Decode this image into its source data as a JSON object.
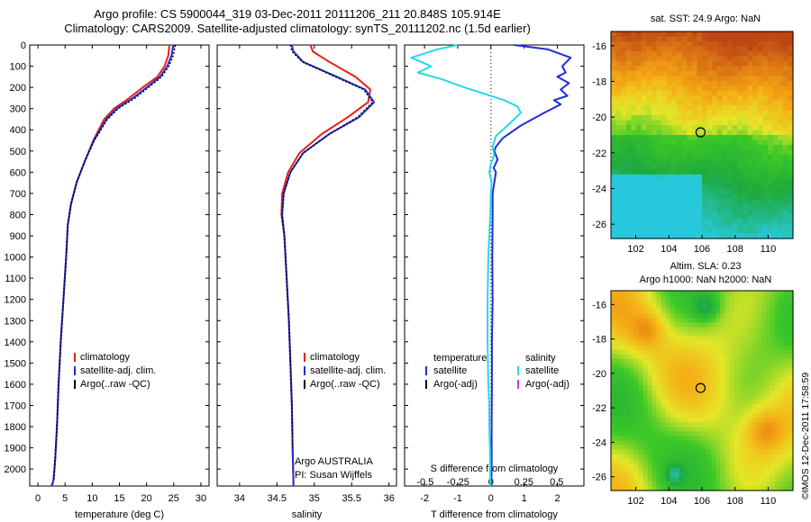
{
  "header": {
    "title_line1": "Argo profile: CS 5900044_319 03-Dec-2011 20111206_211 20.848S 105.914E",
    "title_line2": "Climatology: CARS2009. Satellite-adjusted climatology: synTS_20111202.nc (1.5d earlier)"
  },
  "credit": "©IMOS 12-Dec-2011 17:58:59",
  "sst_map": {
    "title": "sat. SST: 24.9 Argo: NaN"
  },
  "sla_map": {
    "title_line1": "Altim. SLA: 0.23",
    "title_line2": "Argo h1000: NaN h2000: NaN"
  },
  "colors": {
    "climatology": "#e8201a",
    "satellite": "#1f2fd6",
    "argo": "#000000",
    "satellite_salinity": "#26d8e8",
    "argo_adj_salinity": "#d03ad0"
  },
  "chart_data": [
    {
      "type": "line",
      "id": "temperature",
      "xlabel": "temperature (deg C)",
      "xlim": [
        -1.5,
        31.5
      ],
      "xticks": [
        0,
        5,
        10,
        15,
        20,
        25,
        30
      ],
      "ylim": [
        0,
        2080
      ],
      "yticks": [
        0,
        100,
        200,
        300,
        400,
        500,
        600,
        700,
        800,
        900,
        1000,
        1100,
        1200,
        1300,
        1400,
        1500,
        1600,
        1700,
        1800,
        1900,
        2000
      ],
      "y_reversed": true,
      "legend": [
        "climatology",
        "satellite-adj. clim.",
        "Argo(..raw -QC)"
      ],
      "series": [
        {
          "name": "climatology",
          "color": "#e8201a",
          "x": [
            24.2,
            24.0,
            23.3,
            22.0,
            19.3,
            16.8,
            14.0,
            12.2,
            10.2,
            8.6,
            7.1,
            6.1,
            5.5,
            5.2,
            4.7,
            4.2,
            3.8,
            3.5,
            3.2,
            2.9,
            2.5
          ],
          "y": [
            0,
            50,
            100,
            150,
            200,
            250,
            300,
            350,
            450,
            550,
            650,
            750,
            850,
            1000,
            1200,
            1400,
            1600,
            1800,
            1950,
            2050,
            2080
          ]
        },
        {
          "name": "satellite-adj. clim.",
          "color": "#1f2fd6",
          "x": [
            24.9,
            24.6,
            23.8,
            22.5,
            20.0,
            17.5,
            14.5,
            12.6,
            10.3,
            8.6,
            7.1,
            6.1,
            5.5,
            5.2,
            4.7,
            4.2,
            3.8,
            3.5,
            3.2,
            2.9,
            2.6
          ],
          "y": [
            0,
            50,
            100,
            150,
            200,
            250,
            300,
            350,
            450,
            550,
            650,
            750,
            850,
            1000,
            1200,
            1400,
            1600,
            1800,
            1950,
            2050,
            2080
          ]
        },
        {
          "name": "Argo(..raw -QC)",
          "color": "#000000",
          "dash": true,
          "x": [
            25.3,
            24.9,
            24.1,
            22.8,
            20.4,
            17.9,
            14.8,
            12.8,
            10.4,
            8.6,
            7.1,
            6.1,
            5.5,
            5.2,
            4.7,
            4.2,
            3.8,
            3.5,
            3.2,
            2.9
          ],
          "y": [
            0,
            50,
            100,
            150,
            200,
            250,
            300,
            350,
            450,
            550,
            650,
            750,
            850,
            1000,
            1200,
            1400,
            1600,
            1800,
            1950,
            2050
          ]
        }
      ]
    },
    {
      "type": "line",
      "id": "salinity",
      "xlabel": "salinity",
      "xlim": [
        33.7,
        36.1
      ],
      "xticks": [
        34,
        34.5,
        35,
        35.5,
        36
      ],
      "ylim": [
        0,
        2080
      ],
      "y_reversed": true,
      "legend": [
        "climatology",
        "satellite-adj. clim.",
        "Argo(..raw -QC)"
      ],
      "annotations": [
        "Argo AUSTRALIA",
        "PI: Susan Wijffels"
      ],
      "series": [
        {
          "name": "climatology",
          "color": "#e8201a",
          "x": [
            34.95,
            34.98,
            35.2,
            35.55,
            35.75,
            35.72,
            35.45,
            35.1,
            34.8,
            34.65,
            34.57,
            34.56,
            34.6,
            34.63,
            34.66,
            34.68,
            34.7,
            34.71,
            34.72,
            34.72
          ],
          "y": [
            0,
            30,
            80,
            150,
            210,
            270,
            340,
            420,
            510,
            600,
            700,
            800,
            900,
            1100,
            1300,
            1500,
            1700,
            1900,
            2050,
            2080
          ]
        },
        {
          "name": "satellite-adj. clim.",
          "color": "#1f2fd6",
          "x": [
            34.7,
            34.72,
            34.85,
            35.3,
            35.68,
            35.8,
            35.6,
            35.2,
            34.85,
            34.68,
            34.59,
            34.57,
            34.6,
            34.63,
            34.66,
            34.68,
            34.7,
            34.71,
            34.72,
            34.72
          ],
          "y": [
            0,
            30,
            80,
            150,
            210,
            270,
            340,
            420,
            510,
            600,
            700,
            800,
            900,
            1100,
            1300,
            1500,
            1700,
            1900,
            2050,
            2080
          ]
        },
        {
          "name": "Argo(..raw -QC)",
          "color": "#000000",
          "dash": true,
          "x": [
            34.68,
            34.7,
            34.84,
            35.28,
            35.66,
            35.78,
            35.58,
            35.2,
            34.85,
            34.68,
            34.59,
            34.57,
            34.6,
            34.63,
            34.66,
            34.68,
            34.7,
            34.71
          ],
          "y": [
            0,
            30,
            80,
            150,
            210,
            270,
            340,
            420,
            510,
            600,
            700,
            800,
            900,
            1100,
            1300,
            1500,
            1700,
            1900
          ]
        }
      ]
    },
    {
      "type": "line",
      "id": "difference",
      "xlabel": "T difference from climatology",
      "xlabel_top": "S difference from climatology",
      "xlim": [
        -2.6,
        2.8
      ],
      "xticks": [
        -2,
        -1,
        0,
        1,
        2
      ],
      "sticks": [
        {
          "label": "-0.5",
          "x": -1.98
        },
        {
          "label": "-0.25",
          "x": -0.99
        },
        {
          "label": "0",
          "x": 0
        },
        {
          "label": "0.25",
          "x": 0.99
        },
        {
          "label": "0.5",
          "x": 1.98
        }
      ],
      "ylim": [
        0,
        2080
      ],
      "y_reversed": true,
      "legend": {
        "temperature_head": "temperature",
        "salinity_head": "salinity",
        "temperature": [
          "satellite",
          "Argo(-adj)"
        ],
        "salinity": [
          "satellite",
          "Argo(-adj)"
        ]
      },
      "series": [
        {
          "name": "T satellite",
          "color": "#1f2fd6",
          "x": [
            0.7,
            1.7,
            2.4,
            2.15,
            2.25,
            2.0,
            2.35,
            2.1,
            2.3,
            1.9,
            2.1,
            1.6,
            0.9,
            0.35,
            0.15,
            0.1,
            0.2,
            0.08,
            0.15,
            0.1,
            0.05,
            0.05,
            0.04,
            0.05,
            0.03,
            0.03,
            0.02,
            0.02,
            0.01
          ],
          "y": [
            0,
            20,
            60,
            100,
            130,
            150,
            180,
            210,
            240,
            260,
            280,
            320,
            380,
            440,
            480,
            500,
            540,
            580,
            600,
            650,
            700,
            800,
            1000,
            1200,
            1400,
            1600,
            1800,
            2000,
            2080
          ]
        },
        {
          "name": "S satellite",
          "color": "#26d8e8",
          "x": [
            -1.0,
            -1.6,
            -2.4,
            -1.8,
            -2.2,
            -1.5,
            -0.8,
            -0.2,
            0.4,
            0.8,
            0.9,
            0.5,
            0.15,
            0.05,
            0.1,
            0.0,
            -0.05,
            0.02,
            0.0,
            -0.02,
            -0.05,
            -0.08,
            -0.1,
            -0.1,
            -0.08,
            -0.05,
            -0.05,
            -0.03,
            -0.02,
            -0.02
          ],
          "y": [
            0,
            20,
            60,
            100,
            130,
            160,
            200,
            230,
            260,
            290,
            320,
            380,
            430,
            480,
            520,
            560,
            600,
            650,
            700,
            800,
            900,
            1000,
            1200,
            1400,
            1600,
            1700,
            1800,
            1900,
            2000,
            2080
          ]
        }
      ]
    },
    {
      "type": "heatmap",
      "id": "sst",
      "xlim": [
        100.5,
        111.5
      ],
      "xticks": [
        102,
        104,
        106,
        108,
        110
      ],
      "ylim": [
        -26.8,
        -15.2
      ],
      "yticks": [
        -16,
        -18,
        -20,
        -22,
        -24,
        -26
      ],
      "marker": [
        105.914,
        -20.848
      ]
    },
    {
      "type": "heatmap",
      "id": "sla",
      "xlim": [
        100.5,
        111.5
      ],
      "xticks": [
        102,
        104,
        106,
        108,
        110
      ],
      "ylim": [
        -26.8,
        -15.2
      ],
      "yticks": [
        -16,
        -18,
        -20,
        -22,
        -24,
        -26
      ],
      "marker": [
        105.914,
        -20.848
      ]
    }
  ]
}
